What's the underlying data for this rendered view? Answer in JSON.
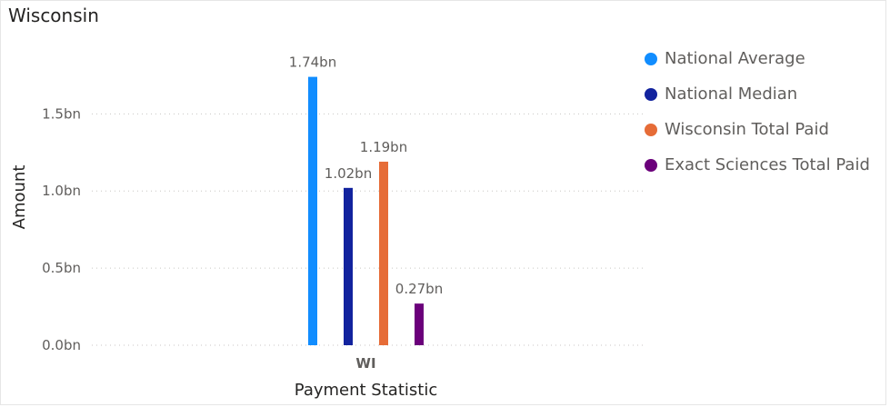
{
  "title": "Wisconsin",
  "chart_data": {
    "type": "bar",
    "categories": [
      "WI"
    ],
    "series": [
      {
        "name": "National Average",
        "values": [
          1.74
        ],
        "label": "1.74bn",
        "color": "#118DFF"
      },
      {
        "name": "National Median",
        "values": [
          1.02
        ],
        "label": "1.02bn",
        "color": "#12239E"
      },
      {
        "name": "Wisconsin Total Paid",
        "values": [
          1.19
        ],
        "label": "1.19bn",
        "color": "#E66C37"
      },
      {
        "name": "Exact Sciences Total Paid",
        "values": [
          0.27
        ],
        "label": "0.27bn",
        "color": "#6B007B"
      }
    ],
    "xlabel": "Payment Statistic",
    "ylabel": "Amount",
    "ylim": [
      0,
      1.8
    ],
    "yticks": [
      {
        "value": 0,
        "label": "0.0bn"
      },
      {
        "value": 0.5,
        "label": "0.5bn"
      },
      {
        "value": 1.0,
        "label": "1.0bn"
      },
      {
        "value": 1.5,
        "label": "1.5bn"
      }
    ],
    "grid": true,
    "legend_position": "right"
  }
}
